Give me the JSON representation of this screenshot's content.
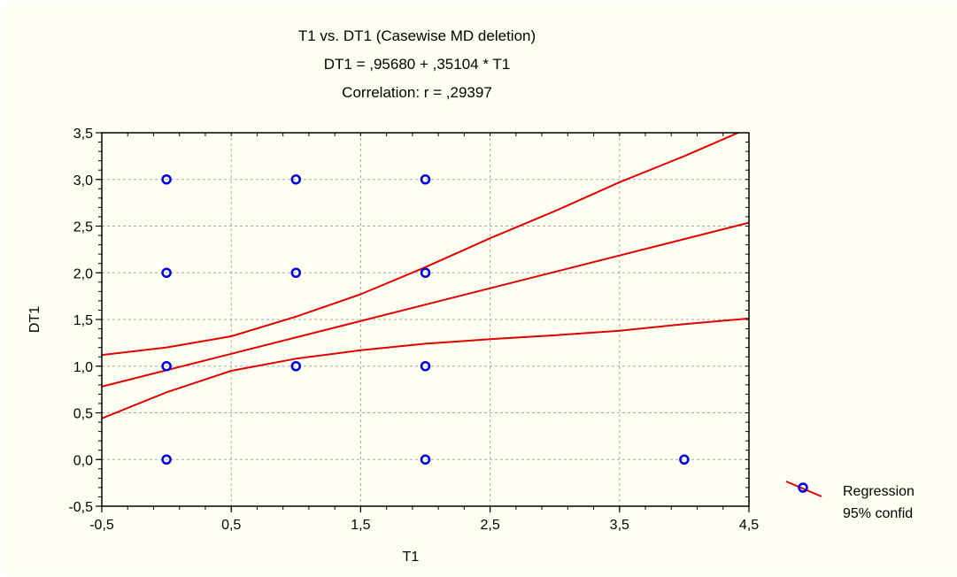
{
  "chart_data": {
    "type": "scatter",
    "title": "T1 vs. DT1 (Casewise MD deletion)",
    "subtitle": "DT1 = ,95680 + ,35104 * T1",
    "subtitle2": "Correlation: r = ,29397",
    "xlabel": "T1",
    "ylabel": "DT1",
    "xlim": [
      -0.5,
      4.5
    ],
    "ylim": [
      -0.5,
      3.5
    ],
    "x_ticks": [
      -0.5,
      0.5,
      1.5,
      2.5,
      3.5,
      4.5
    ],
    "x_tick_labels": [
      "-0,5",
      "0,5",
      "1,5",
      "2,5",
      "3,5",
      "4,5"
    ],
    "y_ticks": [
      -0.5,
      0.0,
      0.5,
      1.0,
      1.5,
      2.0,
      2.5,
      3.0,
      3.5
    ],
    "y_tick_labels": [
      "-0,5",
      "0,0",
      "0,5",
      "1,0",
      "1,5",
      "2,0",
      "2,5",
      "3,0",
      "3,5"
    ],
    "grid": true,
    "legend_position": "bottom-right",
    "legend": [
      "Regression",
      "95% confid"
    ],
    "points": [
      {
        "x": 0,
        "y": 3
      },
      {
        "x": 1,
        "y": 3
      },
      {
        "x": 2,
        "y": 3
      },
      {
        "x": 0,
        "y": 2
      },
      {
        "x": 1,
        "y": 2
      },
      {
        "x": 2,
        "y": 2
      },
      {
        "x": 0,
        "y": 1
      },
      {
        "x": 1,
        "y": 1
      },
      {
        "x": 2,
        "y": 1
      },
      {
        "x": 0,
        "y": 0
      },
      {
        "x": 2,
        "y": 0
      },
      {
        "x": 4,
        "y": 0
      }
    ],
    "regression": {
      "intercept": 0.9568,
      "slope": 0.35104
    },
    "confidence_band": {
      "upper": [
        {
          "x": -0.5,
          "y": 1.12
        },
        {
          "x": 0.0,
          "y": 1.2
        },
        {
          "x": 0.5,
          "y": 1.32
        },
        {
          "x": 1.0,
          "y": 1.53
        },
        {
          "x": 1.5,
          "y": 1.77
        },
        {
          "x": 2.0,
          "y": 2.06
        },
        {
          "x": 2.5,
          "y": 2.37
        },
        {
          "x": 3.0,
          "y": 2.66
        },
        {
          "x": 3.5,
          "y": 2.97
        },
        {
          "x": 4.0,
          "y": 3.25
        },
        {
          "x": 4.5,
          "y": 3.55
        }
      ],
      "lower": [
        {
          "x": -0.5,
          "y": 0.44
        },
        {
          "x": 0.0,
          "y": 0.72
        },
        {
          "x": 0.5,
          "y": 0.95
        },
        {
          "x": 1.0,
          "y": 1.08
        },
        {
          "x": 1.5,
          "y": 1.17
        },
        {
          "x": 2.0,
          "y": 1.24
        },
        {
          "x": 2.5,
          "y": 1.29
        },
        {
          "x": 3.0,
          "y": 1.33
        },
        {
          "x": 3.5,
          "y": 1.38
        },
        {
          "x": 4.0,
          "y": 1.45
        },
        {
          "x": 4.5,
          "y": 1.51
        }
      ]
    },
    "colors": {
      "background": "#fffff2",
      "points": "#0000e6",
      "lines": "#e00000",
      "grid": "#a8a8a8"
    }
  }
}
